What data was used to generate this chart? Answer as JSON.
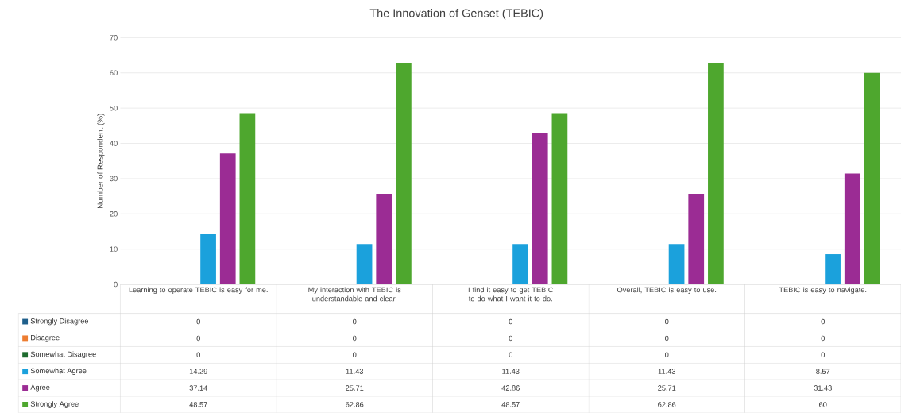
{
  "chart_data": {
    "type": "bar",
    "title": "The Innovation of Genset (TEBIC)",
    "ylabel": "Number of Respondent (%)",
    "categories": [
      "Learning to operate TEBIC is easy for me.",
      "My interaction with TEBIC is understandable and clear.",
      "I find it easy to get TEBIC to do what I want it to do.",
      "Overall, TEBIC is easy to use.",
      "TEBIC is easy to navigate."
    ],
    "series": [
      {
        "name": "Strongly Disagree",
        "color": "#1f5f8b",
        "values": [
          0,
          0,
          0,
          0,
          0
        ]
      },
      {
        "name": "Disagree",
        "color": "#ed7d31",
        "values": [
          0,
          0,
          0,
          0,
          0
        ]
      },
      {
        "name": "Somewhat Disagree",
        "color": "#1e6b2e",
        "values": [
          0,
          0,
          0,
          0,
          0
        ]
      },
      {
        "name": "Somewhat Agree",
        "color": "#1ba1dc",
        "values": [
          14.29,
          11.43,
          11.43,
          11.43,
          8.57
        ]
      },
      {
        "name": "Agree",
        "color": "#9b2c94",
        "values": [
          37.14,
          25.71,
          42.86,
          25.71,
          31.43
        ]
      },
      {
        "name": "Strongly Agree",
        "color": "#4ea72e",
        "values": [
          48.57,
          62.86,
          48.57,
          62.86,
          60
        ]
      }
    ],
    "ylim": [
      0,
      70
    ],
    "yticks": [
      0,
      10,
      20,
      30,
      40,
      50,
      60,
      70
    ],
    "grid": "y",
    "data_labels": true,
    "legend": "bottom"
  }
}
